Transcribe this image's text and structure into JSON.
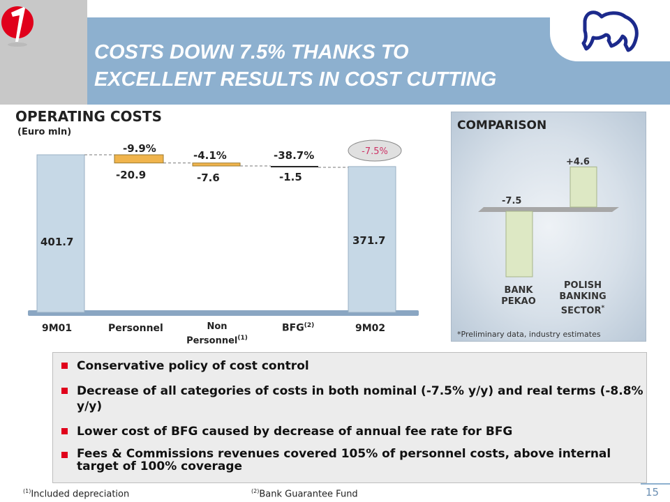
{
  "header": {
    "title_line1": "COSTS DOWN 7.5% THANKS TO",
    "title_line2": "EXCELLENT RESULTS IN COST CUTTING"
  },
  "operating_costs": {
    "title": "OPERATING COSTS",
    "unit": "(Euro mln)"
  },
  "chart_data": [
    {
      "type": "bar",
      "title": "OPERATING COSTS",
      "ylabel": "(Euro mln)",
      "categories": [
        "9M01",
        "Personnel",
        "Non Personnel(1)",
        "BFG(2)",
        "9M02"
      ],
      "values": [
        401.7,
        -20.9,
        -7.6,
        -1.5,
        371.7
      ],
      "pct_changes": [
        "",
        "-9.9%",
        "-4.1%",
        "-38.7%",
        "-7.5%"
      ],
      "value_labels": [
        "401.7",
        "-20.9",
        "-7.6",
        "-1.5",
        "371.7"
      ],
      "total_change_label": "-7.5%",
      "colors": {
        "total_bar": "#c6d8e6",
        "delta_bar": "#f0b44c",
        "ellipse": "#e0e0e0",
        "ellipse_text": "#cc3366"
      }
    },
    {
      "type": "bar",
      "title": "COMPARISON",
      "categories": [
        "BANK PEKAO",
        "POLISH BANKING SECTOR*"
      ],
      "values": [
        -7.5,
        4.6
      ],
      "value_labels": [
        "-7.5",
        "+4.6"
      ],
      "colors": {
        "bar": "#dde8c4"
      }
    }
  ],
  "axis_labels": {
    "c1": "9M01",
    "c2": "Personnel",
    "c3_line1": "Non",
    "c3_line2": "Personnel",
    "c3_sup": "(1)",
    "c4": "BFG",
    "c4_sup": "(2)",
    "c5": "9M02"
  },
  "comparison": {
    "title": "COMPARISON",
    "bank_label_1": "BANK",
    "bank_label_2": "PEKAO",
    "sector_label_1": "POLISH",
    "sector_label_2": "BANKING",
    "sector_label_3": "SECTOR",
    "sector_sup": "*",
    "note": "*Preliminary data, industry estimates"
  },
  "bullets": [
    "Conservative policy of cost control",
    "Decrease of all categories of costs in both nominal (-7.5% y/y) and real terms (-8.8% y/y)",
    "Lower cost of BFG caused by decrease of annual fee rate for BFG",
    "Fees & Commissions revenues covered 105% of personnel costs, above internal target of 100% coverage"
  ],
  "footnotes": {
    "f1_sup": "(1)",
    "f1_text": "Included depreciation",
    "f2_sup": "(2)",
    "f2_text": "Bank Guarantee Fund"
  },
  "page_number": "15",
  "icons": {
    "left_logo": "red-circle-logo-icon",
    "right_logo": "bison-logo-icon"
  }
}
